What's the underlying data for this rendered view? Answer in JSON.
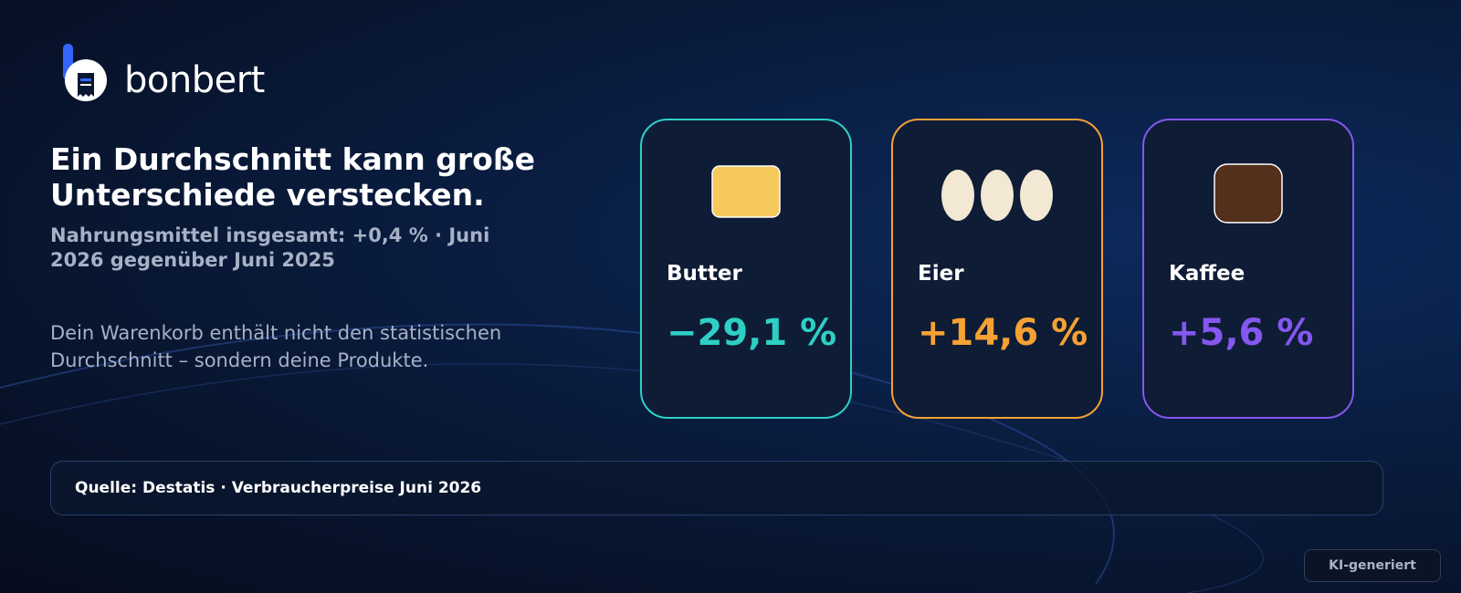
{
  "brand": {
    "name": "bonbert"
  },
  "headline": "Ein Durchschnitt kann große Unterschiede verstecken.",
  "subline": "Nahrungsmittel insgesamt: +0,4 % · Juni 2026 gegenüber Juni 2025",
  "body": "Dein Warenkorb enthält nicht den statistischen Durchschnitt – sondern deine Produkte.",
  "cards": [
    {
      "name": "Butter",
      "value": "−29,1 %",
      "color": "#2ecfc4",
      "icon": "butter-icon"
    },
    {
      "name": "Eier",
      "value": "+14,6 %",
      "color": "#f5a133",
      "icon": "eggs-icon"
    },
    {
      "name": "Kaffee",
      "value": "+5,6 %",
      "color": "#8457f0",
      "icon": "coffee-icon"
    }
  ],
  "source": "Quelle: Destatis · Verbraucherpreise Juni 2026",
  "badge": "KI-generiert"
}
